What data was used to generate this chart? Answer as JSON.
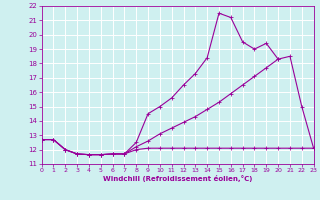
{
  "xlabel": "Windchill (Refroidissement éolien,°C)",
  "bg_color": "#cff0f0",
  "grid_color": "#ffffff",
  "line_color": "#990099",
  "xlim": [
    0,
    23
  ],
  "ylim": [
    11,
    22
  ],
  "xticks": [
    0,
    1,
    2,
    3,
    4,
    5,
    6,
    7,
    8,
    9,
    10,
    11,
    12,
    13,
    14,
    15,
    16,
    17,
    18,
    19,
    20,
    21,
    22,
    23
  ],
  "yticks": [
    11,
    12,
    13,
    14,
    15,
    16,
    17,
    18,
    19,
    20,
    21,
    22
  ],
  "line1_x": [
    0,
    1,
    2,
    3,
    4,
    5,
    6,
    7,
    8,
    9,
    10,
    11,
    12,
    13,
    14,
    15,
    16,
    17,
    18,
    19,
    20,
    21,
    22,
    23
  ],
  "line1_y": [
    12.7,
    12.7,
    12.0,
    11.7,
    11.65,
    11.65,
    11.7,
    11.7,
    12.0,
    12.1,
    12.1,
    12.1,
    12.1,
    12.1,
    12.1,
    12.1,
    12.1,
    12.1,
    12.1,
    12.1,
    12.1,
    12.1,
    12.1,
    12.1
  ],
  "line2_x": [
    0,
    1,
    2,
    3,
    4,
    5,
    6,
    7,
    8,
    9,
    10,
    11,
    12,
    13,
    14,
    15,
    16,
    17,
    18,
    19,
    20
  ],
  "line2_y": [
    12.7,
    12.7,
    12.0,
    11.7,
    11.65,
    11.65,
    11.7,
    11.7,
    12.2,
    12.6,
    13.1,
    13.5,
    13.9,
    14.3,
    14.8,
    15.3,
    15.9,
    16.5,
    17.1,
    17.7,
    18.3
  ],
  "line3_x": [
    0,
    1,
    2,
    3,
    4,
    5,
    6,
    7,
    8,
    9,
    10,
    11,
    12,
    13,
    14,
    15,
    16,
    17,
    18,
    19,
    20,
    21,
    22,
    23
  ],
  "line3_y": [
    12.7,
    12.7,
    12.0,
    11.7,
    11.65,
    11.65,
    11.7,
    11.7,
    12.5,
    14.5,
    15.0,
    15.6,
    16.5,
    17.3,
    18.4,
    21.5,
    21.2,
    19.5,
    19.0,
    19.4,
    18.3,
    18.5,
    15.0,
    12.1
  ]
}
